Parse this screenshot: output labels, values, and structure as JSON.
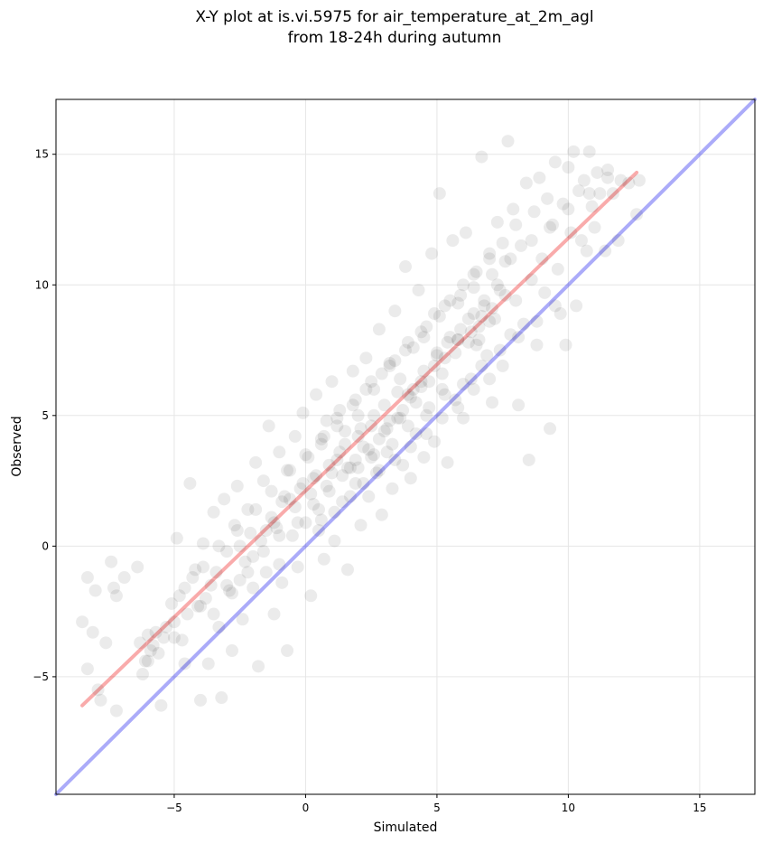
{
  "chart_data": {
    "type": "scatter",
    "title_lines": [
      "X-Y plot at is.vi.5975 for air_temperature_at_2m_agl",
      "from 18-24h during autumn"
    ],
    "xlabel": "Simulated",
    "ylabel": "Observed",
    "xlim": [
      -9.5,
      17.1
    ],
    "ylim": [
      -9.5,
      17.1
    ],
    "xticks": [
      -5,
      0,
      5,
      10,
      15
    ],
    "yticks": [
      -5,
      0,
      5,
      10,
      15
    ],
    "xtick_labels": [
      "−5",
      "0",
      "5",
      "10",
      "15"
    ],
    "ytick_labels": [
      "−5",
      "0",
      "5",
      "10",
      "15"
    ],
    "grid": true,
    "point_color": "#000000",
    "point_opacity": 0.08,
    "reference_lines": [
      {
        "kind": "identity",
        "color": "#0000ee",
        "opacity": 0.33,
        "x": [
          -9.5,
          17.1
        ],
        "y": [
          -9.5,
          17.1
        ]
      },
      {
        "kind": "fit",
        "color": "#ee0000",
        "opacity": 0.33,
        "x": [
          -8.5,
          12.6
        ],
        "y": [
          -6.1,
          14.3
        ]
      }
    ],
    "points": [
      [
        -8.5,
        -2.9
      ],
      [
        -8.3,
        -4.7
      ],
      [
        -8.3,
        -1.2
      ],
      [
        -8.1,
        -3.3
      ],
      [
        -8.0,
        -1.7
      ],
      [
        -7.9,
        -5.5
      ],
      [
        -7.8,
        -5.9
      ],
      [
        -7.6,
        -3.7
      ],
      [
        -7.4,
        -0.6
      ],
      [
        -7.3,
        -1.6
      ],
      [
        -7.2,
        -1.9
      ],
      [
        -7.2,
        -6.3
      ],
      [
        -6.9,
        -1.2
      ],
      [
        -6.4,
        -0.8
      ],
      [
        -6.3,
        -3.7
      ],
      [
        -6.2,
        -4.9
      ],
      [
        -6.1,
        -4.4
      ],
      [
        -6.0,
        -3.4
      ],
      [
        -5.9,
        -4.0
      ],
      [
        -5.8,
        -3.8
      ],
      [
        -5.7,
        -3.3
      ],
      [
        -5.6,
        -4.1
      ],
      [
        -5.5,
        -6.1
      ],
      [
        -5.4,
        -3.5
      ],
      [
        -5.3,
        -3.1
      ],
      [
        -5.1,
        -2.2
      ],
      [
        -5.0,
        -2.9
      ],
      [
        -4.9,
        0.3
      ],
      [
        -4.8,
        -1.9
      ],
      [
        -4.7,
        -3.6
      ],
      [
        -4.6,
        -4.5
      ],
      [
        -4.5,
        -2.6
      ],
      [
        -4.4,
        2.4
      ],
      [
        -4.3,
        -1.2
      ],
      [
        -4.2,
        -0.9
      ],
      [
        -4.1,
        -2.3
      ],
      [
        -4.0,
        -5.9
      ],
      [
        -3.9,
        0.1
      ],
      [
        -3.8,
        -2.0
      ],
      [
        -3.7,
        -4.5
      ],
      [
        -3.6,
        -1.5
      ],
      [
        -3.5,
        1.3
      ],
      [
        -3.4,
        -1.0
      ],
      [
        -3.3,
        -3.1
      ],
      [
        -3.2,
        -5.8
      ],
      [
        -3.1,
        1.8
      ],
      [
        -3.0,
        -0.2
      ],
      [
        -2.9,
        -1.7
      ],
      [
        -2.8,
        -4.0
      ],
      [
        -2.7,
        0.8
      ],
      [
        -2.6,
        2.3
      ],
      [
        -2.5,
        -1.3
      ],
      [
        -2.4,
        -2.8
      ],
      [
        -2.3,
        -0.6
      ],
      [
        -2.2,
        1.4
      ],
      [
        -2.1,
        0.5
      ],
      [
        -2.0,
        -1.6
      ],
      [
        -1.9,
        3.2
      ],
      [
        -1.8,
        -4.6
      ],
      [
        -1.7,
        0.2
      ],
      [
        -1.6,
        2.5
      ],
      [
        -1.5,
        -1.0
      ],
      [
        -1.4,
        4.6
      ],
      [
        -1.3,
        1.1
      ],
      [
        -1.2,
        -2.6
      ],
      [
        -1.1,
        0.7
      ],
      [
        -1.0,
        3.6
      ],
      [
        -0.9,
        -1.4
      ],
      [
        -0.8,
        1.9
      ],
      [
        -0.7,
        -4.0
      ],
      [
        -0.6,
        2.9
      ],
      [
        -0.5,
        0.4
      ],
      [
        -0.4,
        4.2
      ],
      [
        -0.3,
        -0.8
      ],
      [
        -0.2,
        2.2
      ],
      [
        -0.1,
        5.1
      ],
      [
        0.0,
        0.9
      ],
      [
        0.1,
        3.4
      ],
      [
        0.2,
        -1.9
      ],
      [
        0.3,
        2.6
      ],
      [
        0.4,
        5.8
      ],
      [
        0.5,
        1.4
      ],
      [
        0.6,
        3.9
      ],
      [
        0.7,
        -0.5
      ],
      [
        0.8,
        4.8
      ],
      [
        0.9,
        2.1
      ],
      [
        1.0,
        6.3
      ],
      [
        1.1,
        0.2
      ],
      [
        1.2,
        3.3
      ],
      [
        1.3,
        5.2
      ],
      [
        1.4,
        1.7
      ],
      [
        1.5,
        4.4
      ],
      [
        1.6,
        -0.9
      ],
      [
        1.7,
        3.0
      ],
      [
        1.8,
        6.7
      ],
      [
        1.9,
        2.4
      ],
      [
        2.0,
        5.0
      ],
      [
        2.1,
        0.8
      ],
      [
        2.2,
        3.8
      ],
      [
        2.3,
        7.2
      ],
      [
        2.4,
        1.9
      ],
      [
        2.5,
        4.6
      ],
      [
        2.6,
        6.0
      ],
      [
        2.7,
        2.8
      ],
      [
        2.8,
        8.3
      ],
      [
        2.9,
        1.2
      ],
      [
        3.0,
        5.4
      ],
      [
        3.1,
        3.6
      ],
      [
        3.2,
        7.0
      ],
      [
        3.3,
        2.2
      ],
      [
        3.4,
        9.0
      ],
      [
        3.5,
        4.9
      ],
      [
        3.6,
        6.4
      ],
      [
        3.7,
        3.1
      ],
      [
        3.8,
        10.7
      ],
      [
        3.9,
        5.8
      ],
      [
        4.0,
        2.6
      ],
      [
        4.1,
        7.6
      ],
      [
        4.2,
        4.3
      ],
      [
        4.3,
        9.8
      ],
      [
        4.4,
        6.1
      ],
      [
        4.5,
        3.4
      ],
      [
        4.6,
        8.4
      ],
      [
        4.7,
        5.3
      ],
      [
        4.8,
        11.2
      ],
      [
        4.9,
        4.0
      ],
      [
        5.0,
        7.3
      ],
      [
        5.1,
        13.5
      ],
      [
        5.2,
        6.0
      ],
      [
        5.3,
        9.2
      ],
      [
        5.4,
        3.2
      ],
      [
        5.5,
        8.0
      ],
      [
        5.6,
        11.7
      ],
      [
        5.7,
        5.6
      ],
      [
        5.8,
        7.9
      ],
      [
        5.9,
        9.6
      ],
      [
        6.0,
        4.9
      ],
      [
        6.1,
        12.0
      ],
      [
        6.2,
        8.7
      ],
      [
        6.3,
        6.4
      ],
      [
        6.4,
        10.4
      ],
      [
        6.5,
        7.7
      ],
      [
        6.6,
        8.4
      ],
      [
        6.7,
        14.9
      ],
      [
        6.8,
        9.2
      ],
      [
        6.9,
        7.3
      ],
      [
        7.0,
        11.0
      ],
      [
        7.1,
        5.5
      ],
      [
        7.2,
        8.7
      ],
      [
        7.3,
        12.4
      ],
      [
        7.4,
        9.8
      ],
      [
        7.5,
        6.9
      ],
      [
        7.6,
        10.9
      ],
      [
        7.7,
        15.5
      ],
      [
        7.8,
        8.1
      ],
      [
        7.9,
        12.9
      ],
      [
        8.0,
        9.4
      ],
      [
        8.1,
        5.4
      ],
      [
        8.2,
        11.5
      ],
      [
        8.3,
        8.5
      ],
      [
        8.4,
        13.9
      ],
      [
        8.5,
        3.3
      ],
      [
        8.6,
        10.2
      ],
      [
        8.7,
        12.8
      ],
      [
        8.8,
        7.7
      ],
      [
        8.9,
        14.1
      ],
      [
        9.0,
        11.0
      ],
      [
        9.1,
        9.7
      ],
      [
        9.2,
        13.3
      ],
      [
        9.3,
        4.5
      ],
      [
        9.4,
        12.3
      ],
      [
        9.5,
        14.7
      ],
      [
        9.6,
        10.6
      ],
      [
        9.7,
        8.9
      ],
      [
        9.8,
        13.1
      ],
      [
        9.9,
        7.7
      ],
      [
        10.0,
        14.5
      ],
      [
        10.1,
        12.0
      ],
      [
        10.2,
        15.1
      ],
      [
        10.3,
        9.2
      ],
      [
        10.4,
        13.6
      ],
      [
        10.5,
        11.7
      ],
      [
        10.6,
        14.0
      ],
      [
        10.7,
        11.3
      ],
      [
        10.8,
        15.1
      ],
      [
        10.9,
        13.0
      ],
      [
        11.0,
        12.2
      ],
      [
        11.1,
        14.3
      ],
      [
        11.2,
        13.5
      ],
      [
        11.4,
        11.3
      ],
      [
        11.5,
        14.4
      ],
      [
        11.7,
        13.5
      ],
      [
        11.9,
        11.7
      ],
      [
        12.0,
        14.0
      ],
      [
        12.3,
        13.9
      ],
      [
        12.6,
        12.7
      ],
      [
        12.7,
        14.0
      ],
      [
        -2.5,
        0.0
      ],
      [
        -1.0,
        -0.7
      ],
      [
        0.6,
        1.0
      ],
      [
        1.3,
        3.6
      ],
      [
        1.9,
        3.3
      ],
      [
        2.4,
        3.7
      ],
      [
        2.8,
        4.1
      ],
      [
        3.2,
        4.8
      ],
      [
        3.7,
        5.2
      ],
      [
        4.1,
        6.0
      ],
      [
        4.5,
        6.7
      ],
      [
        5.0,
        7.4
      ],
      [
        5.4,
        7.8
      ],
      [
        5.9,
        8.3
      ],
      [
        6.4,
        8.9
      ],
      [
        6.8,
        9.4
      ],
      [
        7.3,
        10.0
      ],
      [
        0.2,
        2.0
      ],
      [
        -0.4,
        1.5
      ],
      [
        -1.5,
        0.6
      ],
      [
        -2.0,
        -0.4
      ],
      [
        -3.0,
        -1.5
      ],
      [
        -4.0,
        -2.3
      ],
      [
        -5.0,
        -3.5
      ],
      [
        -6.0,
        -4.4
      ],
      [
        1.0,
        2.8
      ],
      [
        1.6,
        3.0
      ],
      [
        2.1,
        4.5
      ],
      [
        2.6,
        5.0
      ],
      [
        3.0,
        4.4
      ],
      [
        3.5,
        5.9
      ],
      [
        4.0,
        5.7
      ],
      [
        4.4,
        6.3
      ],
      [
        4.9,
        6.9
      ],
      [
        5.3,
        7.2
      ],
      [
        5.8,
        7.9
      ],
      [
        6.3,
        8.2
      ],
      [
        6.7,
        8.8
      ],
      [
        7.1,
        9.1
      ],
      [
        7.6,
        9.6
      ],
      [
        -0.9,
        1.7
      ],
      [
        -0.1,
        2.4
      ],
      [
        0.4,
        2.7
      ],
      [
        0.9,
        3.1
      ],
      [
        1.5,
        3.9
      ],
      [
        2.0,
        4.2
      ],
      [
        2.5,
        3.4
      ],
      [
        3.1,
        4.5
      ],
      [
        3.6,
        4.9
      ],
      [
        4.2,
        5.5
      ],
      [
        4.7,
        6.3
      ],
      [
        5.2,
        6.6
      ],
      [
        5.7,
        7.4
      ],
      [
        6.2,
        7.8
      ],
      [
        6.6,
        7.9
      ],
      [
        7.0,
        8.6
      ],
      [
        0.7,
        4.2
      ],
      [
        1.2,
        4.6
      ],
      [
        1.8,
        5.4
      ],
      [
        2.3,
        6.0
      ],
      [
        2.9,
        6.6
      ],
      [
        3.4,
        7.1
      ],
      [
        3.9,
        7.8
      ],
      [
        4.4,
        8.2
      ],
      [
        4.9,
        8.9
      ],
      [
        5.5,
        9.4
      ],
      [
        6.0,
        10.0
      ],
      [
        6.5,
        10.5
      ],
      [
        7.0,
        11.2
      ],
      [
        7.5,
        11.6
      ],
      [
        8.0,
        12.3
      ],
      [
        -1.2,
        0.9
      ],
      [
        -0.6,
        1.8
      ],
      [
        0.3,
        1.6
      ],
      [
        0.8,
        2.3
      ],
      [
        1.4,
        2.7
      ],
      [
        2.0,
        3.0
      ],
      [
        2.6,
        3.5
      ],
      [
        3.3,
        3.9
      ],
      [
        3.9,
        4.6
      ],
      [
        4.6,
        5.0
      ],
      [
        5.3,
        5.8
      ],
      [
        6.0,
        6.2
      ],
      [
        6.7,
        6.9
      ],
      [
        7.4,
        7.5
      ],
      [
        8.1,
        8.0
      ],
      [
        8.8,
        8.6
      ],
      [
        9.5,
        9.2
      ],
      [
        -3.5,
        -2.6
      ],
      [
        -2.8,
        -1.8
      ],
      [
        -2.2,
        -1.0
      ],
      [
        -1.6,
        -0.2
      ],
      [
        -1.0,
        0.4
      ],
      [
        -0.3,
        0.9
      ],
      [
        0.5,
        0.6
      ],
      [
        1.1,
        1.3
      ],
      [
        1.7,
        1.9
      ],
      [
        2.2,
        2.4
      ],
      [
        2.8,
        2.9
      ],
      [
        3.4,
        3.3
      ],
      [
        4.0,
        3.8
      ],
      [
        4.6,
        4.3
      ],
      [
        5.2,
        4.9
      ],
      [
        5.8,
        5.3
      ],
      [
        6.4,
        6.0
      ],
      [
        7.0,
        6.4
      ],
      [
        -4.6,
        -1.6
      ],
      [
        -3.9,
        -0.8
      ],
      [
        -3.3,
        0.0
      ],
      [
        -2.6,
        0.6
      ],
      [
        -1.9,
        1.4
      ],
      [
        -1.3,
        2.1
      ],
      [
        -0.7,
        2.9
      ],
      [
        0.0,
        3.5
      ],
      [
        0.6,
        4.1
      ],
      [
        1.2,
        4.9
      ],
      [
        1.9,
        5.6
      ],
      [
        2.5,
        6.3
      ],
      [
        3.2,
        6.9
      ],
      [
        3.8,
        7.5
      ],
      [
        4.5,
        8.0
      ],
      [
        5.1,
        8.8
      ],
      [
        5.8,
        9.3
      ],
      [
        6.4,
        9.9
      ],
      [
        7.1,
        10.4
      ],
      [
        7.8,
        11.0
      ],
      [
        8.6,
        11.7
      ],
      [
        9.3,
        12.2
      ],
      [
        10.0,
        12.9
      ],
      [
        10.8,
        13.5
      ],
      [
        11.5,
        14.1
      ]
    ]
  }
}
